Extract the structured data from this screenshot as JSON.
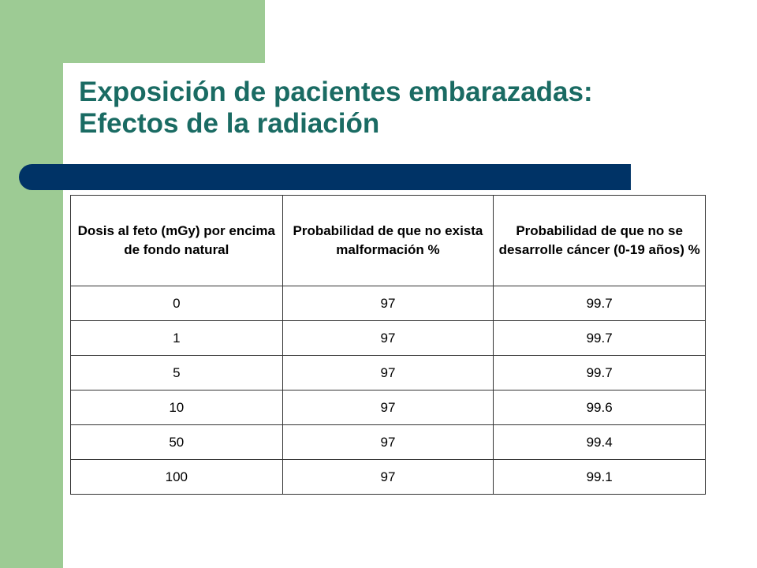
{
  "slide": {
    "title_line1": "Exposición de pacientes embarazadas:",
    "title_line2": "Efectos de la radiación"
  },
  "table": {
    "headers": [
      "Dosis al feto (mGy) por encima de fondo natural",
      "Probabilidad de que no   exista malformación %",
      "Probabilidad de que no se desarrolle cáncer (0-19 años) %"
    ],
    "rows": [
      [
        "0",
        "97",
        "99.7"
      ],
      [
        "1",
        "97",
        "99.7"
      ],
      [
        "5",
        "97",
        "99.7"
      ],
      [
        "10",
        "97",
        "99.6"
      ],
      [
        "50",
        "97",
        "99.4"
      ],
      [
        "100",
        "97",
        "99.1"
      ]
    ]
  },
  "colors": {
    "accent_green": "#9dcb94",
    "title_teal": "#1a6b63",
    "bar_navy": "#003366"
  }
}
